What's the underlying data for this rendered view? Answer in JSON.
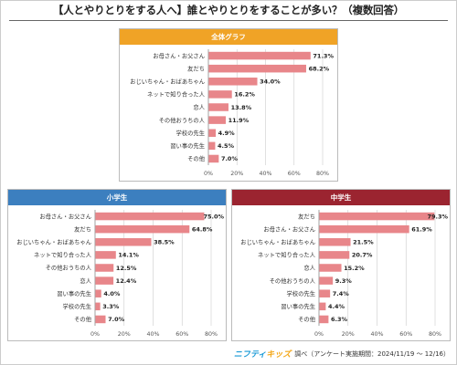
{
  "page": {
    "title": "【人とやりとりをする人へ】誰とやりとりをすることが多い？（複数回答）",
    "footer_brand_a": "ニフティ",
    "footer_brand_b": "キッズ",
    "footer_text": "調べ（アンケート実施期間：2024/11/19 ～ 12/16）"
  },
  "colors": {
    "bar": "#e8868a",
    "header_all": "#f0a326",
    "header_elementary": "#3c7fbf",
    "header_junior_high": "#9b2430"
  },
  "chart_data": [
    {
      "type": "bar",
      "orientation": "horizontal",
      "title": "全体グラフ",
      "categories": [
        "お母さん・お父さん",
        "友だち",
        "おじいちゃん・おばあちゃん",
        "ネットで知り合った人",
        "恋人",
        "その他おうちの人",
        "学校の先生",
        "習い事の先生",
        "その他"
      ],
      "values": [
        71.3,
        68.2,
        34.0,
        16.2,
        13.8,
        11.9,
        4.9,
        4.5,
        7.0
      ],
      "value_labels": [
        "71.3%",
        "68.2%",
        "34.0%",
        "16.2%",
        "13.8%",
        "11.9%",
        "4.9%",
        "4.5%",
        "7.0%"
      ],
      "xlim": [
        0,
        80
      ],
      "xticks": [
        "0%",
        "20%",
        "40%",
        "60%",
        "80%"
      ],
      "grid": true
    },
    {
      "type": "bar",
      "orientation": "horizontal",
      "title": "小学生",
      "categories": [
        "お母さん・お父さん",
        "友だち",
        "おじいちゃん・おばあちゃん",
        "ネットで知り合った人",
        "その他おうちの人",
        "恋人",
        "習い事の先生",
        "学校の先生",
        "その他"
      ],
      "values": [
        75.0,
        64.8,
        38.5,
        14.1,
        12.5,
        12.4,
        4.0,
        3.3,
        7.0
      ],
      "value_labels": [
        "75.0%",
        "64.8%",
        "38.5%",
        "14.1%",
        "12.5%",
        "12.4%",
        "4.0%",
        "3.3%",
        "7.0%"
      ],
      "xlim": [
        0,
        80
      ],
      "xticks": [
        "0%",
        "20%",
        "40%",
        "60%",
        "80%"
      ],
      "grid": true
    },
    {
      "type": "bar",
      "orientation": "horizontal",
      "title": "中学生",
      "categories": [
        "友だち",
        "お母さん・お父さん",
        "おじいちゃん・おばあちゃん",
        "ネットで知り合った人",
        "恋人",
        "その他おうちの人",
        "学校の先生",
        "習い事の先生",
        "その他"
      ],
      "values": [
        79.3,
        61.9,
        21.5,
        20.7,
        15.2,
        9.3,
        7.4,
        4.4,
        6.3
      ],
      "value_labels": [
        "79.3%",
        "61.9%",
        "21.5%",
        "20.7%",
        "15.2%",
        "9.3%",
        "7.4%",
        "4.4%",
        "6.3%"
      ],
      "xlim": [
        0,
        80
      ],
      "xticks": [
        "0%",
        "20%",
        "40%",
        "60%",
        "80%"
      ],
      "grid": true
    }
  ]
}
